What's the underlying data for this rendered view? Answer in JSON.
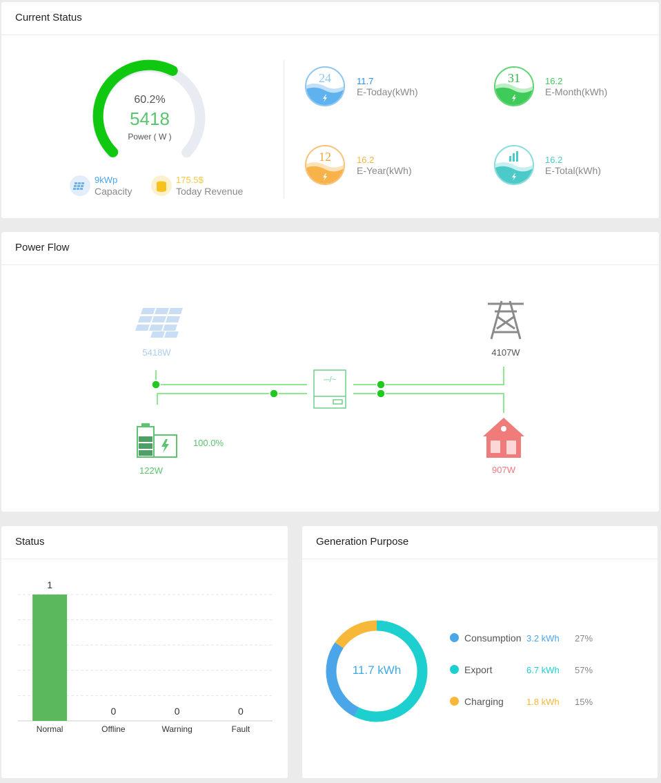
{
  "current_status": {
    "title": "Current Status",
    "gauge": {
      "percent_text": "60.2%",
      "percent": 0.602,
      "power_value": "5418",
      "power_label": "Power ( W )",
      "color": "#11c811",
      "track": "#e8ebf2"
    },
    "capacity": {
      "value": "9kWp",
      "label": "Capacity",
      "icon": "solar-panel-icon",
      "color": "#4aa6e8"
    },
    "revenue": {
      "value": "175.5$",
      "label": "Today Revenue",
      "icon": "coins-icon",
      "color": "#f7c842"
    },
    "energy": [
      {
        "number": "24",
        "value": "11.7",
        "label": "E-Today(kWh)",
        "color": "#4aa6e8",
        "icon": "calendar-day-icon"
      },
      {
        "number": "31",
        "value": "16.2",
        "label": "E-Month(kWh)",
        "color": "#3ecb5a",
        "icon": "calendar-month-icon"
      },
      {
        "number": "12",
        "value": "16.2",
        "label": "E-Year(kWh)",
        "color": "#f7b24a",
        "icon": "calendar-year-icon"
      },
      {
        "number": "",
        "value": "16.2",
        "label": "E-Total(kWh)",
        "color": "#4cc9c9",
        "icon": "bar-chart-icon"
      }
    ]
  },
  "power_flow": {
    "title": "Power Flow",
    "pv": {
      "value": "5418W",
      "color": "#a9cdf0",
      "icon": "solar-panel-icon"
    },
    "grid": {
      "value": "4107W",
      "color": "#555555",
      "icon": "power-tower-icon"
    },
    "battery": {
      "value": "122W",
      "soc": "100.0%",
      "color": "#5cc46f",
      "icon": "battery-icon"
    },
    "load": {
      "value": "907W",
      "color": "#f07b7b",
      "icon": "home-icon"
    },
    "inverter_icon": "inverter-icon",
    "line_color": "#8ee88e",
    "node_color": "#20c820"
  },
  "status": {
    "title": "Status",
    "chart_data": {
      "type": "bar",
      "categories": [
        "Normal",
        "Offline",
        "Warning",
        "Fault"
      ],
      "values": [
        1,
        0,
        0,
        0
      ],
      "ylim": [
        0,
        1
      ],
      "grid": true,
      "color": "#5cb85c"
    }
  },
  "generation_purpose": {
    "title": "Generation Purpose",
    "chart_data": {
      "type": "pie",
      "center_text": "11.7 kWh",
      "slices": [
        {
          "name": "Consumption",
          "value_text": "3.2 kWh",
          "percent_text": "27%",
          "value": 3.2,
          "color": "#4aa6e8"
        },
        {
          "name": "Export",
          "value_text": "6.7 kWh",
          "percent_text": "57%",
          "value": 6.7,
          "color": "#1ecfcf"
        },
        {
          "name": "Charging",
          "value_text": "1.8 kWh",
          "percent_text": "15%",
          "value": 1.8,
          "color": "#f7b83a"
        }
      ]
    }
  }
}
